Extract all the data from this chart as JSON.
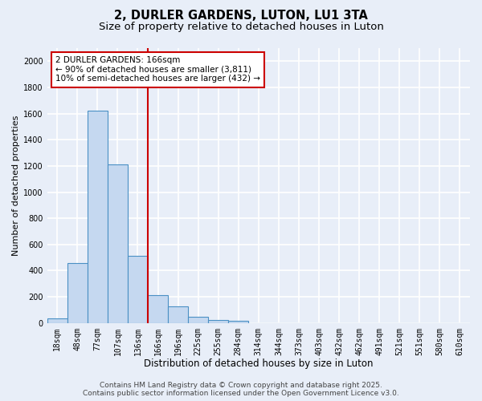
{
  "title": "2, DURLER GARDENS, LUTON, LU1 3TA",
  "subtitle": "Size of property relative to detached houses in Luton",
  "xlabel": "Distribution of detached houses by size in Luton",
  "ylabel": "Number of detached properties",
  "categories": [
    "18sqm",
    "48sqm",
    "77sqm",
    "107sqm",
    "136sqm",
    "166sqm",
    "196sqm",
    "225sqm",
    "255sqm",
    "284sqm",
    "314sqm",
    "344sqm",
    "373sqm",
    "403sqm",
    "432sqm",
    "462sqm",
    "491sqm",
    "521sqm",
    "551sqm",
    "580sqm",
    "610sqm"
  ],
  "values": [
    35,
    460,
    1620,
    1210,
    510,
    215,
    130,
    45,
    20,
    15,
    0,
    0,
    0,
    0,
    0,
    0,
    0,
    0,
    0,
    0,
    0
  ],
  "bar_color": "#c5d8f0",
  "bar_edge_color": "#4a90c4",
  "vline_color": "#cc0000",
  "annotation_text": "2 DURLER GARDENS: 166sqm\n← 90% of detached houses are smaller (3,811)\n10% of semi-detached houses are larger (432) →",
  "annotation_box_color": "#ffffff",
  "annotation_box_edge_color": "#cc0000",
  "ylim": [
    0,
    2100
  ],
  "yticks": [
    0,
    200,
    400,
    600,
    800,
    1000,
    1200,
    1400,
    1600,
    1800,
    2000
  ],
  "background_color": "#e8eef8",
  "grid_color": "#ffffff",
  "footer_line1": "Contains HM Land Registry data © Crown copyright and database right 2025.",
  "footer_line2": "Contains public sector information licensed under the Open Government Licence v3.0.",
  "title_fontsize": 10.5,
  "subtitle_fontsize": 9.5,
  "xlabel_fontsize": 8.5,
  "ylabel_fontsize": 8,
  "tick_fontsize": 7,
  "footer_fontsize": 6.5,
  "annotation_fontsize": 7.5
}
